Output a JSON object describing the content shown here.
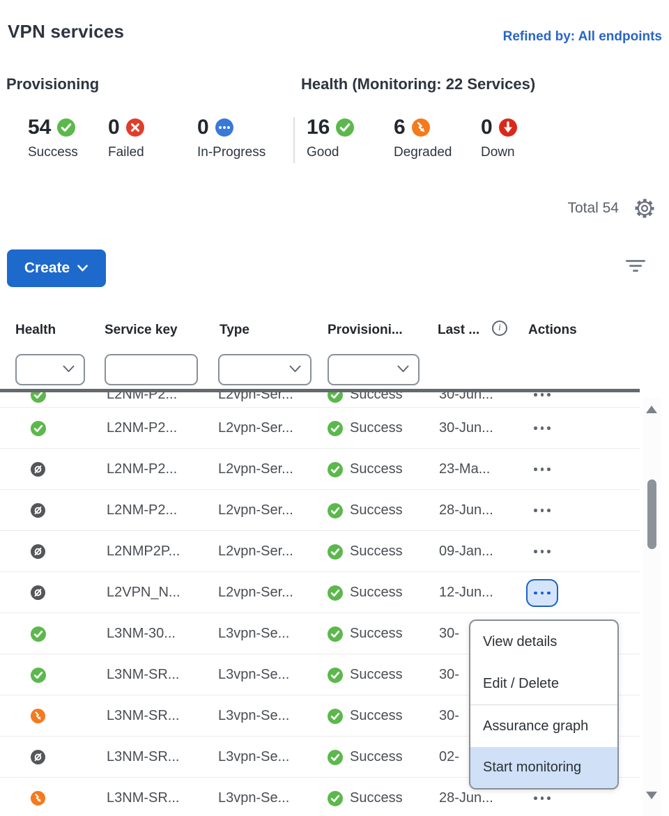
{
  "page": {
    "title": "VPN services",
    "refined_by_label": "Refined by: All endpoints"
  },
  "provisioning_summary": {
    "title": "Provisioning",
    "stats": [
      {
        "value": "54",
        "label": "Success",
        "icon": "check-circle",
        "color": "#5cb84c"
      },
      {
        "value": "0",
        "label": "Failed",
        "icon": "x-circle",
        "color": "#e23c2b"
      },
      {
        "value": "0",
        "label": "In-Progress",
        "icon": "ellipsis-circle",
        "color": "#3779da"
      }
    ]
  },
  "health_summary": {
    "title": "Health (Monitoring: 22 Services)",
    "stats": [
      {
        "value": "16",
        "label": "Good",
        "icon": "check-circle",
        "color": "#5cb84c"
      },
      {
        "value": "6",
        "label": "Degraded",
        "icon": "zigzag-circle",
        "color": "#f57a1e"
      },
      {
        "value": "0",
        "label": "Down",
        "icon": "down-circle",
        "color": "#da291c"
      }
    ]
  },
  "toolbar": {
    "total_label": "Total 54",
    "create_label": "Create"
  },
  "table": {
    "headers": {
      "health": "Health",
      "service_key": "Service key",
      "type": "Type",
      "provisioning": "Provisioni...",
      "last_updated": "Last ...",
      "actions": "Actions"
    },
    "partial_row": {
      "health": "good",
      "service_key": "L2NM-P2...",
      "type": "L2vpn-Ser...",
      "provisioning": "Success",
      "last_updated": "30-Jun...",
      "actions_active": false
    },
    "rows": [
      {
        "health": "good",
        "service_key": "L2NM-P2...",
        "type": "L2vpn-Ser...",
        "provisioning": "Success",
        "last_updated": "30-Jun...",
        "actions_active": false
      },
      {
        "health": "monitoring-off",
        "service_key": "L2NM-P2...",
        "type": "L2vpn-Ser...",
        "provisioning": "Success",
        "last_updated": "23-Ma...",
        "actions_active": false
      },
      {
        "health": "monitoring-off",
        "service_key": "L2NM-P2...",
        "type": "L2vpn-Ser...",
        "provisioning": "Success",
        "last_updated": "28-Jun...",
        "actions_active": false
      },
      {
        "health": "monitoring-off",
        "service_key": "L2NMP2P...",
        "type": "L2vpn-Ser...",
        "provisioning": "Success",
        "last_updated": "09-Jan...",
        "actions_active": false
      },
      {
        "health": "monitoring-off",
        "service_key": "L2VPN_N...",
        "type": "L2vpn-Ser...",
        "provisioning": "Success",
        "last_updated": "12-Jun...",
        "actions_active": true
      },
      {
        "health": "good",
        "service_key": "L3NM-30...",
        "type": "L3vpn-Se...",
        "provisioning": "Success",
        "last_updated": "30-",
        "actions_active": false
      },
      {
        "health": "good",
        "service_key": "L3NM-SR...",
        "type": "L3vpn-Se...",
        "provisioning": "Success",
        "last_updated": "30-",
        "actions_active": false
      },
      {
        "health": "degraded",
        "service_key": "L3NM-SR...",
        "type": "L3vpn-Se...",
        "provisioning": "Success",
        "last_updated": "30-",
        "actions_active": false
      },
      {
        "health": "monitoring-off",
        "service_key": "L3NM-SR...",
        "type": "L3vpn-Se...",
        "provisioning": "Success",
        "last_updated": "02-",
        "actions_active": false
      },
      {
        "health": "degraded",
        "service_key": "L3NM-SR...",
        "type": "L3vpn-Se...",
        "provisioning": "Success",
        "last_updated": "28-Jun...",
        "actions_active": false
      }
    ]
  },
  "context_menu": {
    "items": [
      {
        "label": "View details",
        "highlighted": false
      },
      {
        "label": "Edit / Delete",
        "highlighted": false
      },
      {
        "label": "Assurance graph",
        "highlighted": false
      },
      {
        "label": "Start monitoring",
        "highlighted": true
      }
    ]
  },
  "colors": {
    "accent_blue": "#1d69cc",
    "link_blue": "#2866c8",
    "menu_highlight": "#cfe0f7",
    "success_green": "#5cb84c",
    "degraded_orange": "#f57a1e",
    "down_red": "#da291c",
    "monitoring_off_gray": "#55565a"
  }
}
